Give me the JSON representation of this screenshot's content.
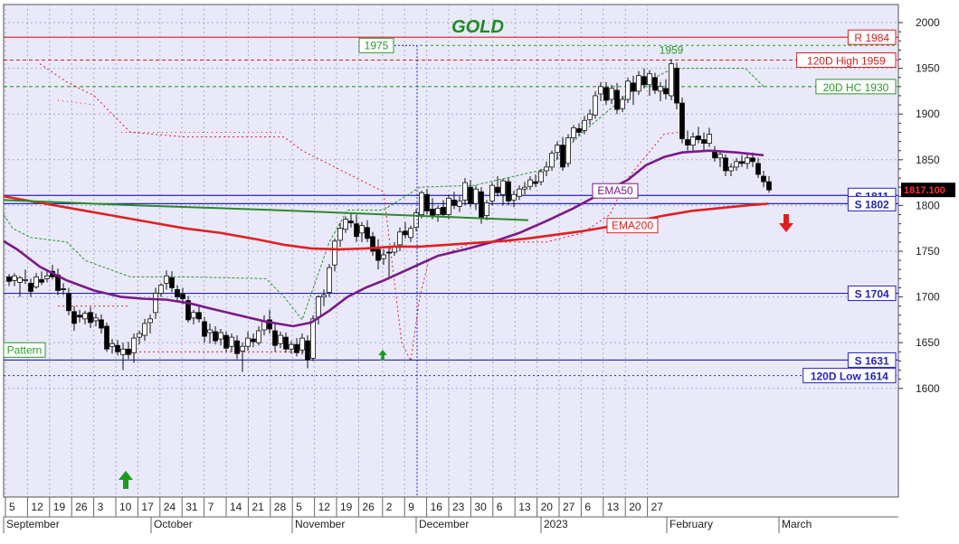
{
  "chart_data": {
    "type": "candlestick",
    "title": "GOLD",
    "ylim": [
      1590,
      2010
    ],
    "y_ticks": [
      1600,
      1650,
      1700,
      1750,
      1800,
      1850,
      1900,
      1950,
      2000
    ],
    "last_price": "1817.100",
    "x_axis": {
      "day_ticks": [
        "5",
        "12",
        "19",
        "26",
        "3",
        "10",
        "17",
        "24",
        "31",
        "7",
        "14",
        "21",
        "28",
        "5",
        "12",
        "19",
        "26",
        "2",
        "9",
        "16",
        "23",
        "30",
        "6",
        "13",
        "20",
        "27",
        "6",
        "13",
        "20",
        "27"
      ],
      "month_labels": [
        "September",
        "October",
        "November",
        "December",
        "2023",
        "February",
        "March"
      ]
    },
    "horizontal_levels": [
      {
        "label": "R 1984",
        "value": 1984,
        "color": "#d42020",
        "style": "solid"
      },
      {
        "label": "120D High 1959",
        "value": 1959,
        "color": "#d42020",
        "style": "dashed"
      },
      {
        "label": "20D HC 1930",
        "value": 1930,
        "color": "#2a9a2a",
        "style": "dashed"
      },
      {
        "label": "S 1811",
        "value": 1811,
        "color": "#2424b8",
        "style": "solid"
      },
      {
        "label": "S 1802",
        "value": 1802,
        "color": "#2424b8",
        "style": "solid"
      },
      {
        "label": "S 1704",
        "value": 1704,
        "color": "#2424b8",
        "style": "solid"
      },
      {
        "label": "S 1631",
        "value": 1631,
        "color": "#2424b8",
        "style": "solid"
      },
      {
        "label": "120D Low 1614",
        "value": 1614,
        "color": "#2424b8",
        "style": "dotted"
      }
    ],
    "annotations": [
      {
        "text": "1975",
        "value": 1975
      },
      {
        "text": "1959",
        "value": 1959
      },
      {
        "text": "EMA50"
      },
      {
        "text": "EMA200"
      },
      {
        "text": "Pattern"
      }
    ],
    "series": [
      {
        "name": "EMA50",
        "color": "#7a1a8a",
        "points": [
          [
            0,
            1761
          ],
          [
            15,
            1752
          ],
          [
            40,
            1733
          ],
          [
            70,
            1718
          ],
          [
            100,
            1707
          ],
          [
            130,
            1700
          ],
          [
            155,
            1698
          ],
          [
            180,
            1697
          ],
          [
            200,
            1694
          ],
          [
            210,
            1692
          ],
          [
            230,
            1687
          ],
          [
            260,
            1680
          ],
          [
            290,
            1673
          ],
          [
            320,
            1668
          ],
          [
            340,
            1672
          ],
          [
            360,
            1685
          ],
          [
            380,
            1700
          ],
          [
            400,
            1710
          ],
          [
            420,
            1718
          ],
          [
            440,
            1727
          ],
          [
            460,
            1736
          ],
          [
            480,
            1745
          ],
          [
            510,
            1752
          ],
          [
            540,
            1760
          ],
          [
            570,
            1770
          ],
          [
            600,
            1783
          ],
          [
            630,
            1797
          ],
          [
            660,
            1813
          ],
          [
            690,
            1828
          ],
          [
            710,
            1844
          ],
          [
            730,
            1853
          ],
          [
            750,
            1858
          ],
          [
            780,
            1860
          ],
          [
            810,
            1858
          ],
          [
            840,
            1855
          ]
        ]
      },
      {
        "name": "EMA200",
        "color": "#e02020",
        "points": [
          [
            0,
            1810
          ],
          [
            40,
            1803
          ],
          [
            80,
            1796
          ],
          [
            120,
            1789
          ],
          [
            160,
            1782
          ],
          [
            200,
            1775
          ],
          [
            240,
            1770
          ],
          [
            280,
            1763
          ],
          [
            310,
            1757
          ],
          [
            340,
            1753
          ],
          [
            370,
            1752
          ],
          [
            400,
            1753
          ],
          [
            430,
            1755
          ],
          [
            460,
            1755
          ],
          [
            490,
            1757
          ],
          [
            520,
            1759
          ],
          [
            550,
            1761
          ],
          [
            580,
            1764
          ],
          [
            610,
            1768
          ],
          [
            640,
            1772
          ],
          [
            670,
            1777
          ],
          [
            700,
            1783
          ],
          [
            730,
            1789
          ],
          [
            760,
            1794
          ],
          [
            790,
            1797
          ],
          [
            820,
            1800
          ],
          [
            845,
            1802
          ]
        ]
      },
      {
        "name": "Pattern",
        "color": "#2a8a2a",
        "points": [
          [
            0,
            1806
          ],
          [
            150,
            1800
          ],
          [
            300,
            1795
          ],
          [
            450,
            1789
          ],
          [
            580,
            1784
          ]
        ]
      }
    ],
    "candles": [
      [
        6,
        1722,
        1725,
        1712,
        1717
      ],
      [
        12,
        1718,
        1726,
        1712,
        1723
      ],
      [
        18,
        1716,
        1723,
        1700,
        1721
      ],
      [
        24,
        1718,
        1730,
        1714,
        1719
      ],
      [
        30,
        1715,
        1720,
        1700,
        1706
      ],
      [
        36,
        1711,
        1726,
        1709,
        1722
      ],
      [
        42,
        1719,
        1728,
        1713,
        1716
      ],
      [
        48,
        1720,
        1729,
        1716,
        1723
      ],
      [
        54,
        1728,
        1735,
        1719,
        1722
      ],
      [
        60,
        1724,
        1731,
        1702,
        1707
      ],
      [
        66,
        1709,
        1715,
        1702,
        1708
      ],
      [
        72,
        1704,
        1710,
        1680,
        1685
      ],
      [
        78,
        1684,
        1690,
        1663,
        1671
      ],
      [
        84,
        1680,
        1686,
        1672,
        1678
      ],
      [
        90,
        1676,
        1685,
        1670,
        1682
      ],
      [
        96,
        1683,
        1689,
        1666,
        1672
      ],
      [
        102,
        1674,
        1682,
        1668,
        1677
      ],
      [
        108,
        1675,
        1681,
        1660,
        1666
      ],
      [
        114,
        1668,
        1672,
        1640,
        1643
      ],
      [
        120,
        1646,
        1654,
        1638,
        1649
      ],
      [
        126,
        1647,
        1653,
        1636,
        1640
      ],
      [
        132,
        1637,
        1650,
        1620,
        1643
      ],
      [
        138,
        1643,
        1651,
        1632,
        1637
      ],
      [
        144,
        1639,
        1660,
        1628,
        1655
      ],
      [
        150,
        1656,
        1663,
        1648,
        1660
      ],
      [
        156,
        1658,
        1676,
        1652,
        1671
      ],
      [
        162,
        1672,
        1681,
        1660,
        1676
      ],
      [
        168,
        1683,
        1710,
        1676,
        1704
      ],
      [
        174,
        1704,
        1715,
        1700,
        1713
      ],
      [
        180,
        1715,
        1729,
        1708,
        1723
      ],
      [
        186,
        1721,
        1728,
        1705,
        1710
      ],
      [
        192,
        1708,
        1713,
        1695,
        1700
      ],
      [
        198,
        1703,
        1710,
        1692,
        1698
      ],
      [
        204,
        1696,
        1701,
        1672,
        1675
      ],
      [
        210,
        1677,
        1686,
        1670,
        1683
      ],
      [
        216,
        1683,
        1690,
        1672,
        1676
      ],
      [
        222,
        1673,
        1678,
        1650,
        1657
      ],
      [
        228,
        1661,
        1671,
        1649,
        1664
      ],
      [
        234,
        1662,
        1668,
        1648,
        1652
      ],
      [
        240,
        1654,
        1665,
        1647,
        1661
      ],
      [
        246,
        1658,
        1662,
        1640,
        1644
      ],
      [
        252,
        1646,
        1660,
        1640,
        1656
      ],
      [
        258,
        1652,
        1658,
        1632,
        1638
      ],
      [
        264,
        1641,
        1650,
        1618,
        1646
      ],
      [
        270,
        1646,
        1662,
        1641,
        1655
      ],
      [
        276,
        1654,
        1660,
        1645,
        1651
      ],
      [
        282,
        1650,
        1668,
        1647,
        1663
      ],
      [
        288,
        1664,
        1680,
        1658,
        1674
      ],
      [
        294,
        1675,
        1686,
        1660,
        1665
      ],
      [
        300,
        1663,
        1670,
        1640,
        1647
      ],
      [
        306,
        1649,
        1662,
        1644,
        1658
      ],
      [
        312,
        1656,
        1661,
        1639,
        1643
      ],
      [
        318,
        1643,
        1652,
        1638,
        1648
      ],
      [
        324,
        1648,
        1655,
        1635,
        1639
      ],
      [
        330,
        1642,
        1660,
        1637,
        1655
      ],
      [
        336,
        1652,
        1658,
        1622,
        1631
      ],
      [
        342,
        1633,
        1680,
        1630,
        1676
      ],
      [
        348,
        1678,
        1702,
        1670,
        1700
      ],
      [
        354,
        1700,
        1708,
        1690,
        1702
      ],
      [
        360,
        1705,
        1736,
        1700,
        1732
      ],
      [
        366,
        1735,
        1764,
        1728,
        1761
      ],
      [
        372,
        1762,
        1781,
        1755,
        1775
      ],
      [
        378,
        1774,
        1788,
        1770,
        1785
      ],
      [
        384,
        1783,
        1792,
        1776,
        1781
      ],
      [
        390,
        1780,
        1790,
        1760,
        1766
      ],
      [
        396,
        1770,
        1782,
        1760,
        1778
      ],
      [
        402,
        1776,
        1784,
        1760,
        1764
      ],
      [
        408,
        1766,
        1771,
        1745,
        1750
      ],
      [
        414,
        1752,
        1763,
        1730,
        1740
      ],
      [
        420,
        1742,
        1752,
        1735,
        1746
      ],
      [
        426,
        1749,
        1755,
        1722,
        1748
      ],
      [
        432,
        1749,
        1760,
        1745,
        1755
      ],
      [
        438,
        1757,
        1776,
        1750,
        1771
      ],
      [
        444,
        1772,
        1782,
        1764,
        1768
      ],
      [
        450,
        1765,
        1778,
        1760,
        1775
      ],
      [
        456,
        1776,
        1796,
        1772,
        1792
      ],
      [
        462,
        1790,
        1816,
        1786,
        1814
      ],
      [
        468,
        1812,
        1818,
        1790,
        1794
      ],
      [
        474,
        1796,
        1808,
        1785,
        1788
      ],
      [
        480,
        1790,
        1800,
        1782,
        1797
      ],
      [
        486,
        1798,
        1806,
        1788,
        1790
      ],
      [
        492,
        1790,
        1812,
        1785,
        1808
      ],
      [
        498,
        1806,
        1815,
        1796,
        1800
      ],
      [
        504,
        1799,
        1810,
        1793,
        1805
      ],
      [
        510,
        1806,
        1830,
        1800,
        1825
      ],
      [
        516,
        1820,
        1828,
        1798,
        1802
      ],
      [
        522,
        1802,
        1822,
        1795,
        1818
      ],
      [
        528,
        1815,
        1820,
        1780,
        1786
      ],
      [
        534,
        1789,
        1806,
        1784,
        1803
      ],
      [
        540,
        1805,
        1825,
        1800,
        1822
      ],
      [
        546,
        1820,
        1832,
        1810,
        1814
      ],
      [
        552,
        1812,
        1829,
        1800,
        1827
      ],
      [
        558,
        1826,
        1830,
        1800,
        1805
      ],
      [
        564,
        1806,
        1816,
        1798,
        1812
      ],
      [
        570,
        1810,
        1822,
        1806,
        1818
      ],
      [
        576,
        1818,
        1826,
        1812,
        1820
      ],
      [
        582,
        1821,
        1832,
        1817,
        1828
      ],
      [
        588,
        1826,
        1834,
        1820,
        1824
      ],
      [
        594,
        1826,
        1840,
        1822,
        1837
      ],
      [
        600,
        1838,
        1848,
        1832,
        1842
      ],
      [
        606,
        1842,
        1860,
        1838,
        1857
      ],
      [
        612,
        1858,
        1870,
        1850,
        1866
      ],
      [
        618,
        1866,
        1875,
        1838,
        1842
      ],
      [
        624,
        1846,
        1878,
        1842,
        1874
      ],
      [
        630,
        1874,
        1888,
        1870,
        1885
      ],
      [
        636,
        1884,
        1890,
        1876,
        1880
      ],
      [
        642,
        1882,
        1898,
        1878,
        1893
      ],
      [
        648,
        1894,
        1905,
        1888,
        1900
      ],
      [
        654,
        1899,
        1925,
        1895,
        1920
      ],
      [
        660,
        1922,
        1935,
        1914,
        1930
      ],
      [
        666,
        1929,
        1935,
        1910,
        1915
      ],
      [
        672,
        1916,
        1932,
        1911,
        1928
      ],
      [
        678,
        1926,
        1934,
        1900,
        1905
      ],
      [
        684,
        1906,
        1920,
        1902,
        1916
      ],
      [
        690,
        1916,
        1940,
        1912,
        1936
      ],
      [
        696,
        1934,
        1942,
        1910,
        1925
      ],
      [
        702,
        1925,
        1947,
        1921,
        1942
      ],
      [
        708,
        1941,
        1950,
        1928,
        1932
      ],
      [
        714,
        1932,
        1948,
        1920,
        1944
      ],
      [
        720,
        1940,
        1945,
        1922,
        1926
      ],
      [
        726,
        1925,
        1935,
        1914,
        1930
      ],
      [
        732,
        1928,
        1938,
        1916,
        1922
      ],
      [
        738,
        1920,
        1960,
        1915,
        1955
      ],
      [
        744,
        1950,
        1956,
        1905,
        1912
      ],
      [
        750,
        1912,
        1918,
        1868,
        1873
      ],
      [
        756,
        1872,
        1882,
        1860,
        1866
      ],
      [
        762,
        1866,
        1880,
        1860,
        1875
      ],
      [
        768,
        1876,
        1886,
        1868,
        1872
      ],
      [
        774,
        1872,
        1880,
        1860,
        1868
      ],
      [
        780,
        1868,
        1885,
        1864,
        1878
      ],
      [
        786,
        1860,
        1865,
        1848,
        1852
      ],
      [
        792,
        1852,
        1860,
        1842,
        1856
      ],
      [
        798,
        1852,
        1856,
        1832,
        1838
      ],
      [
        804,
        1838,
        1846,
        1832,
        1842
      ],
      [
        810,
        1842,
        1852,
        1838,
        1848
      ],
      [
        816,
        1848,
        1855,
        1842,
        1846
      ],
      [
        822,
        1846,
        1856,
        1840,
        1852
      ],
      [
        828,
        1852,
        1858,
        1842,
        1848
      ],
      [
        834,
        1846,
        1852,
        1830,
        1834
      ],
      [
        840,
        1832,
        1838,
        1820,
        1826
      ],
      [
        846,
        1826,
        1832,
        1814,
        1817
      ]
    ]
  }
}
